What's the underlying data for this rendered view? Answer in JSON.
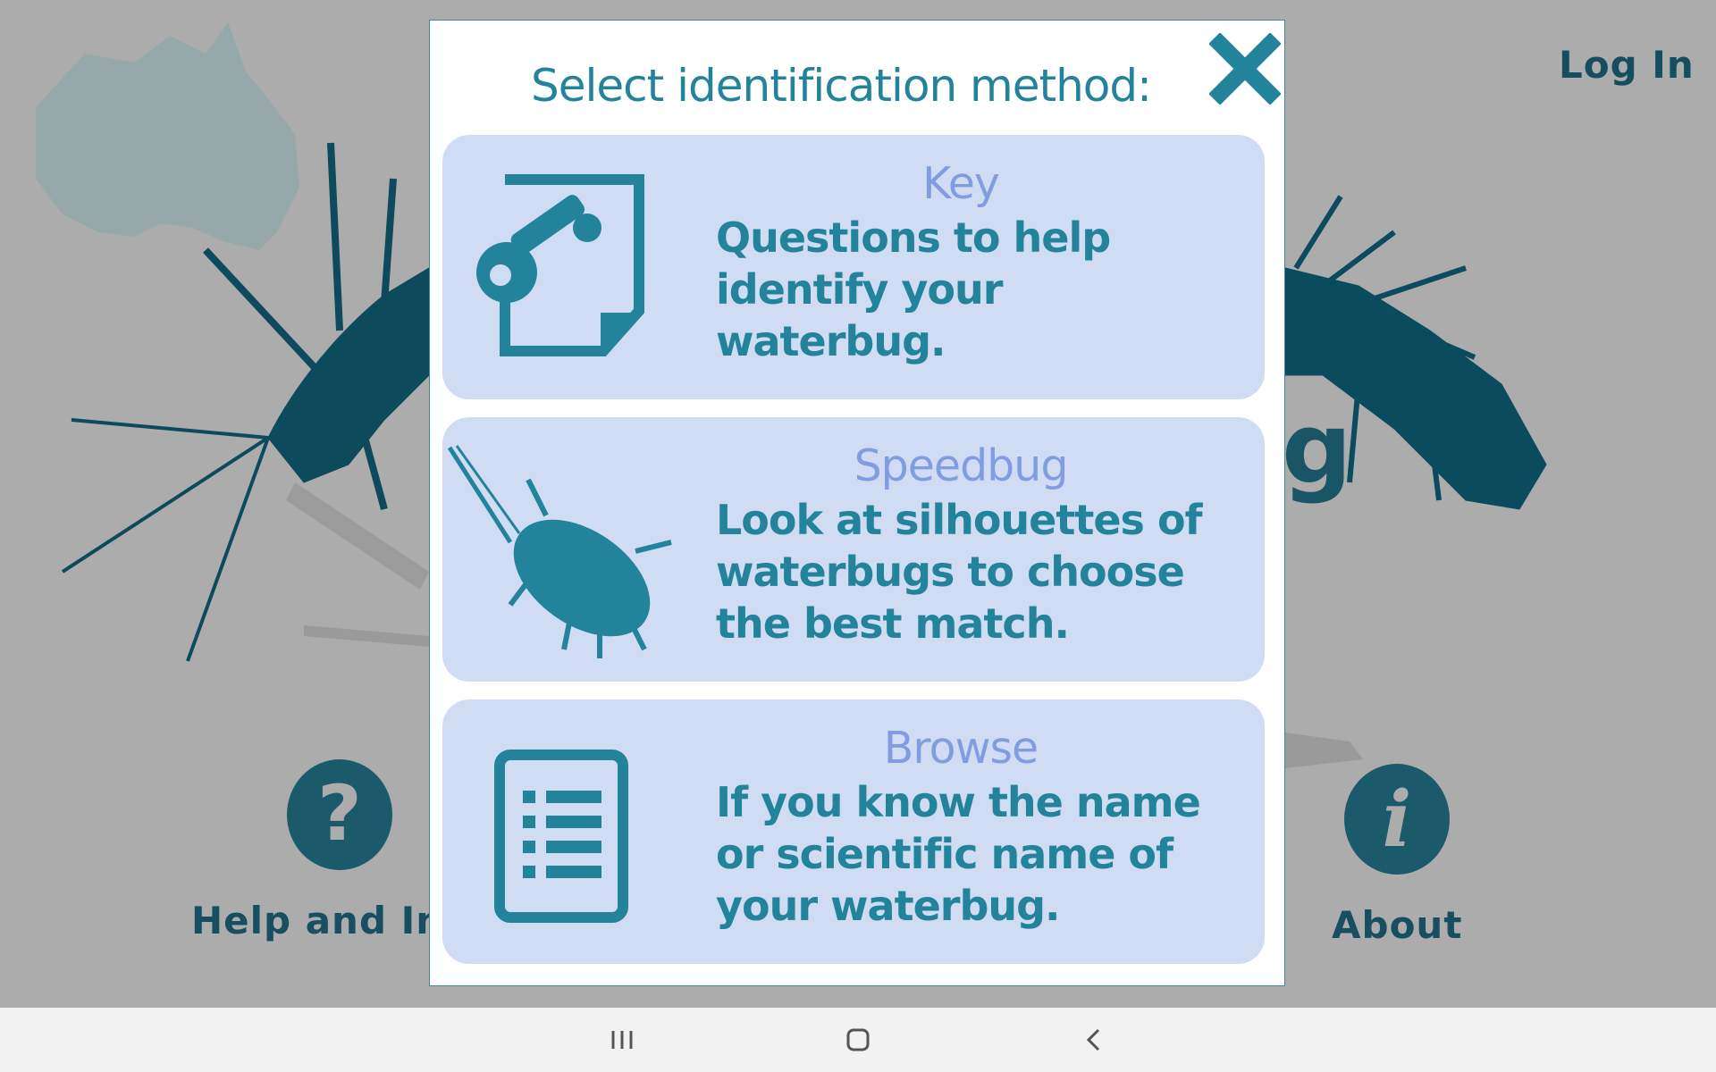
{
  "background": {
    "login_label": "Log In",
    "help_label": "Help and Info",
    "about_label": "About",
    "help_icon": "question-mark-icon",
    "about_icon": "info-icon"
  },
  "modal": {
    "title": "Select identification method:",
    "close_icon": "close-x-icon",
    "options": [
      {
        "title": "Key",
        "description": "Questions to help identify your waterbug.",
        "icon": "key-document-icon"
      },
      {
        "title": "Speedbug",
        "description": "Look at silhouettes of waterbugs to choose the best match.",
        "icon": "waterbug-silhouette-icon"
      },
      {
        "title": "Browse",
        "description": "If you know the name or scientific name of your waterbug.",
        "icon": "list-document-icon"
      }
    ]
  },
  "navbar": {
    "recents_icon": "recent-apps-icon",
    "home_icon": "home-icon",
    "back_icon": "back-chevron-icon"
  },
  "colors": {
    "accent": "#22839b",
    "option_bg": "#cfdcf4",
    "option_title": "#7f9de0",
    "dim_background": "#acacac",
    "dark_teal": "#164d5f"
  }
}
